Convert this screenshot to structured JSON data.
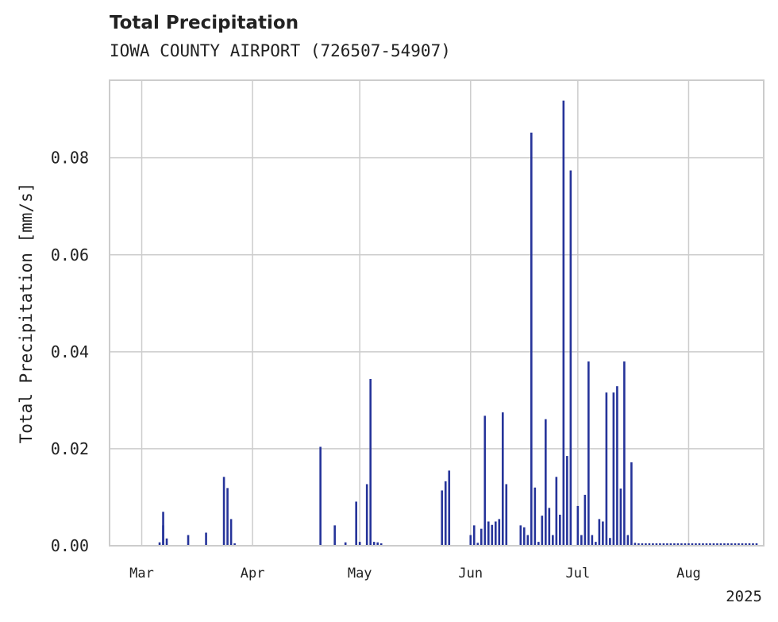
{
  "chart_data": {
    "type": "bar",
    "title": "Total Precipitation",
    "subtitle": "IOWA COUNTY AIRPORT (726507-54907)",
    "xlabel": "",
    "ylabel": "Total Precipitation [mm/s]",
    "x_tick_labels": [
      "Mar",
      "Apr",
      "May",
      "Jun",
      "Jul",
      "Aug"
    ],
    "x_year_label": "2025",
    "y_tick_labels": [
      "0.00",
      "0.02",
      "0.04",
      "0.06",
      "0.08"
    ],
    "ylim": [
      0,
      0.096
    ],
    "xlim": [
      "2025-02-20",
      "2025-08-22"
    ],
    "grid": true,
    "series": [
      {
        "color": "#26349a",
        "x": [
          "2025-03-06",
          "2025-03-07",
          "2025-03-07",
          "2025-03-08",
          "2025-03-14",
          "2025-03-19",
          "2025-03-24",
          "2025-03-25",
          "2025-03-26",
          "2025-03-27",
          "2025-04-20",
          "2025-04-24",
          "2025-04-27",
          "2025-04-30",
          "2025-05-01",
          "2025-05-03",
          "2025-05-04",
          "2025-05-05",
          "2025-05-06",
          "2025-05-07",
          "2025-05-24",
          "2025-05-25",
          "2025-05-26",
          "2025-06-01",
          "2025-06-02",
          "2025-06-03",
          "2025-06-04",
          "2025-06-05",
          "2025-06-06",
          "2025-06-07",
          "2025-06-08",
          "2025-06-09",
          "2025-06-10",
          "2025-06-11",
          "2025-06-15",
          "2025-06-16",
          "2025-06-17",
          "2025-06-18",
          "2025-06-19",
          "2025-06-20",
          "2025-06-21",
          "2025-06-22",
          "2025-06-23",
          "2025-06-24",
          "2025-06-25",
          "2025-06-26",
          "2025-06-27",
          "2025-06-28",
          "2025-06-29",
          "2025-07-01",
          "2025-07-02",
          "2025-07-03",
          "2025-07-04",
          "2025-07-05",
          "2025-07-06",
          "2025-07-07",
          "2025-07-08",
          "2025-07-09",
          "2025-07-10",
          "2025-07-11",
          "2025-07-12",
          "2025-07-13",
          "2025-07-14",
          "2025-07-15",
          "2025-07-16",
          "2025-07-17",
          "2025-07-18",
          "2025-07-19",
          "2025-07-20",
          "2025-07-21",
          "2025-07-22",
          "2025-07-23",
          "2025-07-24",
          "2025-07-25",
          "2025-07-26",
          "2025-07-27",
          "2025-07-28",
          "2025-07-29",
          "2025-07-30",
          "2025-07-31",
          "2025-08-01",
          "2025-08-02",
          "2025-08-03",
          "2025-08-04",
          "2025-08-05",
          "2025-08-06",
          "2025-08-07",
          "2025-08-08",
          "2025-08-09",
          "2025-08-10",
          "2025-08-11",
          "2025-08-12",
          "2025-08-13",
          "2025-08-14",
          "2025-08-15",
          "2025-08-16",
          "2025-08-17",
          "2025-08-18",
          "2025-08-19",
          "2025-08-20"
        ],
        "values": [
          0.0007,
          0.007,
          0.0042,
          0.0015,
          0.0022,
          0.0027,
          0.0142,
          0.0119,
          0.0055,
          0.0005,
          0.0204,
          0.0042,
          0.0007,
          0.0091,
          0.0008,
          0.0127,
          0.0344,
          0.0008,
          0.0007,
          0.0005,
          0.0114,
          0.0133,
          0.0155,
          0.0022,
          0.0042,
          0.0006,
          0.0035,
          0.0268,
          0.005,
          0.0043,
          0.005,
          0.0055,
          0.0275,
          0.0127,
          0.0042,
          0.0038,
          0.0022,
          0.0852,
          0.012,
          0.0008,
          0.0062,
          0.0261,
          0.0078,
          0.0022,
          0.0142,
          0.0064,
          0.0918,
          0.0185,
          0.0774,
          0.0082,
          0.0022,
          0.0105,
          0.038,
          0.0022,
          0.0008,
          0.0055,
          0.005,
          0.0316,
          0.0016,
          0.0316,
          0.0329,
          0.0118,
          0.038,
          0.0022,
          0.0172,
          0.0006,
          0.0005,
          0.0005,
          0.0005,
          0.0005,
          0.0005,
          0.0005,
          0.0005,
          0.0005,
          0.0005,
          0.0005,
          0.0005,
          0.0005,
          0.0005,
          0.0005,
          0.0005,
          0.0005,
          0.0005,
          0.0005,
          0.0005,
          0.0005,
          0.0005,
          0.0005,
          0.0005,
          0.0005,
          0.0005,
          0.0005,
          0.0005,
          0.0005,
          0.0005,
          0.0005,
          0.0005,
          0.0005,
          0.0005,
          0.0005
        ]
      }
    ]
  }
}
